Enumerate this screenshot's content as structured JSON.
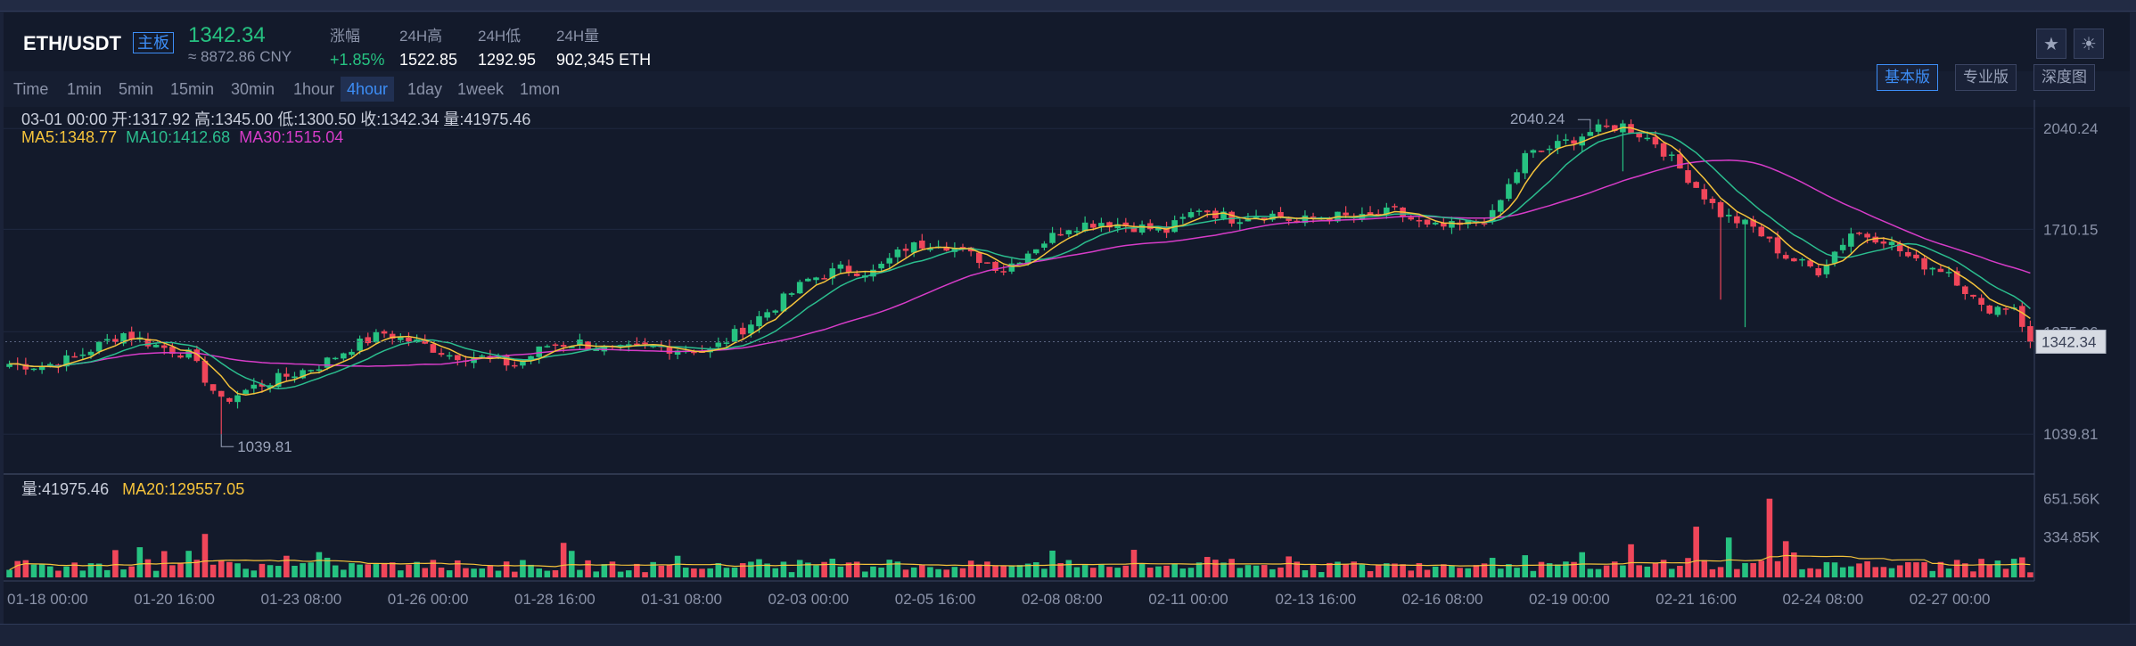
{
  "header": {
    "pair": "ETH/USDT",
    "board_label": "主板",
    "last_price": "1342.34",
    "cny_price": "≈ 8872.86 CNY",
    "stats": [
      {
        "label": "涨幅",
        "value": "+1.85%",
        "up": true
      },
      {
        "label": "24H高",
        "value": "1522.85"
      },
      {
        "label": "24H低",
        "value": "1292.95"
      },
      {
        "label": "24H量",
        "value": "902,345 ETH"
      }
    ],
    "star_icon": "star-icon",
    "theme_icon": "sun-icon"
  },
  "toolbar": {
    "periods": [
      "Time",
      "1min",
      "5min",
      "15min",
      "30min",
      "1hour",
      "4hour",
      "1day",
      "1week",
      "1mon"
    ],
    "active_period": "4hour",
    "views": [
      "基本版",
      "专业版",
      "深度图"
    ],
    "active_view": "基本版"
  },
  "legend": {
    "ohlc": "03-01 00:00   开:1317.92  高:1345.00  低:1300.50  收:1342.34  量:41975.46",
    "ma5": "MA5:1348.77",
    "ma10": "MA10:1412.68",
    "ma30": "MA30:1515.04",
    "vol": "量:41975.46",
    "vol_ma20": "MA20:129557.05"
  },
  "colors": {
    "up": "#26c281",
    "down": "#f0465a",
    "ma5": "#f5c33b",
    "ma10": "#2bbd8e",
    "ma30": "#d63cc8",
    "accent": "#3d8ef7"
  },
  "chart_data": {
    "type": "candlestick",
    "price_ticks": [
      "2040.24",
      "1710.15",
      "1375.06",
      "1039.81"
    ],
    "price_tick_values": [
      2040.24,
      1710.15,
      1375.06,
      1039.81
    ],
    "ylim": [
      915,
      2105
    ],
    "volume_ticks": [
      "651.56K",
      "334.85K"
    ],
    "volume_tick_values": [
      651560,
      334850
    ],
    "x_ticks": [
      "01-18 00:00",
      "01-20 16:00",
      "01-23 08:00",
      "01-26 00:00",
      "01-28 16:00",
      "01-31 08:00",
      "02-03 00:00",
      "02-05 16:00",
      "02-08 08:00",
      "02-11 00:00",
      "02-13 16:00",
      "02-16 08:00",
      "02-19 00:00",
      "02-21 16:00",
      "02-24 08:00",
      "02-27 00:00"
    ],
    "high_annotation": "2040.24",
    "low_annotation": "1039.81",
    "current_price_label": "1342.34",
    "anchors": [
      [
        0,
        1270
      ],
      [
        4,
        1262
      ],
      [
        8,
        1290
      ],
      [
        12,
        1345
      ],
      [
        14,
        1370
      ],
      [
        18,
        1330
      ],
      [
        22,
        1300
      ],
      [
        26,
        1145
      ],
      [
        30,
        1195
      ],
      [
        34,
        1230
      ],
      [
        38,
        1265
      ],
      [
        42,
        1325
      ],
      [
        46,
        1370
      ],
      [
        50,
        1340
      ],
      [
        54,
        1300
      ],
      [
        58,
        1290
      ],
      [
        62,
        1265
      ],
      [
        66,
        1330
      ],
      [
        70,
        1340
      ],
      [
        74,
        1310
      ],
      [
        78,
        1325
      ],
      [
        82,
        1320
      ],
      [
        86,
        1312
      ],
      [
        90,
        1385
      ],
      [
        94,
        1460
      ],
      [
        98,
        1545
      ],
      [
        102,
        1580
      ],
      [
        106,
        1570
      ],
      [
        110,
        1650
      ],
      [
        114,
        1670
      ],
      [
        118,
        1625
      ],
      [
        122,
        1580
      ],
      [
        126,
        1655
      ],
      [
        130,
        1720
      ],
      [
        134,
        1735
      ],
      [
        138,
        1720
      ],
      [
        142,
        1705
      ],
      [
        146,
        1780
      ],
      [
        150,
        1745
      ],
      [
        154,
        1765
      ],
      [
        158,
        1735
      ],
      [
        162,
        1755
      ],
      [
        166,
        1745
      ],
      [
        170,
        1770
      ],
      [
        174,
        1715
      ],
      [
        178,
        1720
      ],
      [
        182,
        1755
      ],
      [
        186,
        1950
      ],
      [
        190,
        1985
      ],
      [
        194,
        2030
      ],
      [
        198,
        2050
      ],
      [
        202,
        1995
      ],
      [
        206,
        1880
      ],
      [
        210,
        1760
      ],
      [
        214,
        1715
      ],
      [
        218,
        1620
      ],
      [
        222,
        1575
      ],
      [
        226,
        1700
      ],
      [
        230,
        1680
      ],
      [
        234,
        1600
      ],
      [
        238,
        1575
      ],
      [
        242,
        1450
      ],
      [
        246,
        1460
      ],
      [
        248,
        1342
      ]
    ],
    "total_candles": 249
  }
}
